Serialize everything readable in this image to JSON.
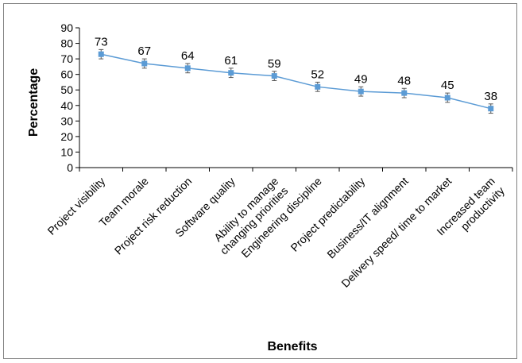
{
  "chart_data": {
    "type": "line",
    "title": "",
    "xlabel": "Benefits",
    "ylabel": "Percentage",
    "ylim": [
      0,
      90
    ],
    "yticks": [
      "0",
      "10",
      "20",
      "30",
      "40",
      "50",
      "60",
      "70",
      "80",
      "90"
    ],
    "grid": false,
    "legend": "none",
    "categories": [
      [
        "Project visibility"
      ],
      [
        "Team morale"
      ],
      [
        "Project risk reduction"
      ],
      [
        "Software quality"
      ],
      [
        "Ability to manage",
        "changing priorities"
      ],
      [
        "Engineering discipline"
      ],
      [
        "Project predictability"
      ],
      [
        "Business/IT alignment"
      ],
      [
        "Delivery speed/ time to market"
      ],
      [
        "Increased team",
        "productivity"
      ]
    ],
    "values": [
      73,
      67,
      64,
      61,
      59,
      52,
      49,
      48,
      45,
      38
    ],
    "error": [
      3,
      3,
      3,
      3,
      3,
      3,
      3,
      3,
      3,
      3
    ],
    "colors": {
      "line": "#5b9bd5",
      "marker": "#5b9bd5",
      "error_bar": "#595959",
      "axis": "#000000"
    }
  }
}
